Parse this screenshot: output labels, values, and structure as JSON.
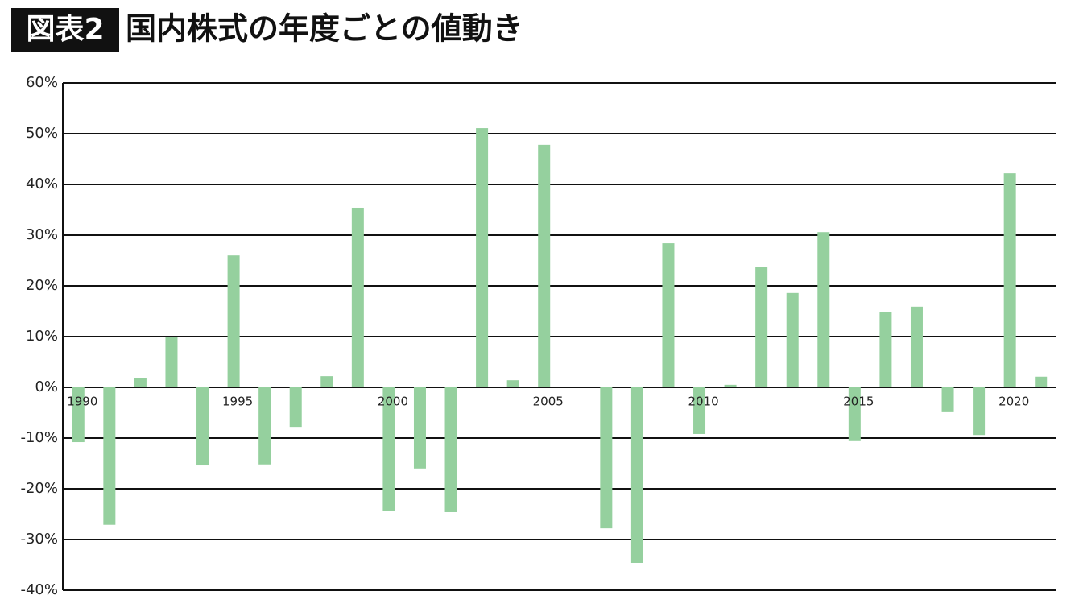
{
  "chart_data": {
    "type": "bar",
    "badge": "図表2",
    "title": "国内株式の年度ごとの値動き",
    "categories": [
      "1990",
      null,
      null,
      null,
      null,
      "1995",
      null,
      null,
      null,
      null,
      "2000",
      null,
      null,
      null,
      null,
      "2005",
      null,
      null,
      null,
      null,
      "2010",
      null,
      null,
      null,
      null,
      "2015",
      null,
      null,
      null,
      null,
      "2020",
      null
    ],
    "values": [
      -10.8,
      -27.1,
      1.9,
      10.0,
      -15.4,
      26.0,
      -15.2,
      -7.8,
      2.2,
      35.4,
      -24.4,
      -16.0,
      -24.6,
      51.1,
      1.4,
      47.8,
      0,
      -27.8,
      -34.6,
      28.4,
      -9.2,
      0.5,
      23.7,
      18.6,
      30.6,
      -10.6,
      14.8,
      15.9,
      -4.9,
      -9.4,
      42.2,
      2.1
    ],
    "color": "#95d09e",
    "ylim": [
      -40,
      60
    ],
    "yticks": [
      {
        "value": -40,
        "label": "-40%"
      },
      {
        "value": -30,
        "label": "-30%"
      },
      {
        "value": -20,
        "label": "-20%"
      },
      {
        "value": -10,
        "label": "-10%"
      },
      {
        "value": 0,
        "label": "0%"
      },
      {
        "value": 10,
        "label": "10%"
      },
      {
        "value": 20,
        "label": "20%"
      },
      {
        "value": 30,
        "label": "30%"
      },
      {
        "value": 40,
        "label": "40%"
      },
      {
        "value": 50,
        "label": "50%"
      },
      {
        "value": 60,
        "label": "60%"
      }
    ],
    "grid": true
  }
}
